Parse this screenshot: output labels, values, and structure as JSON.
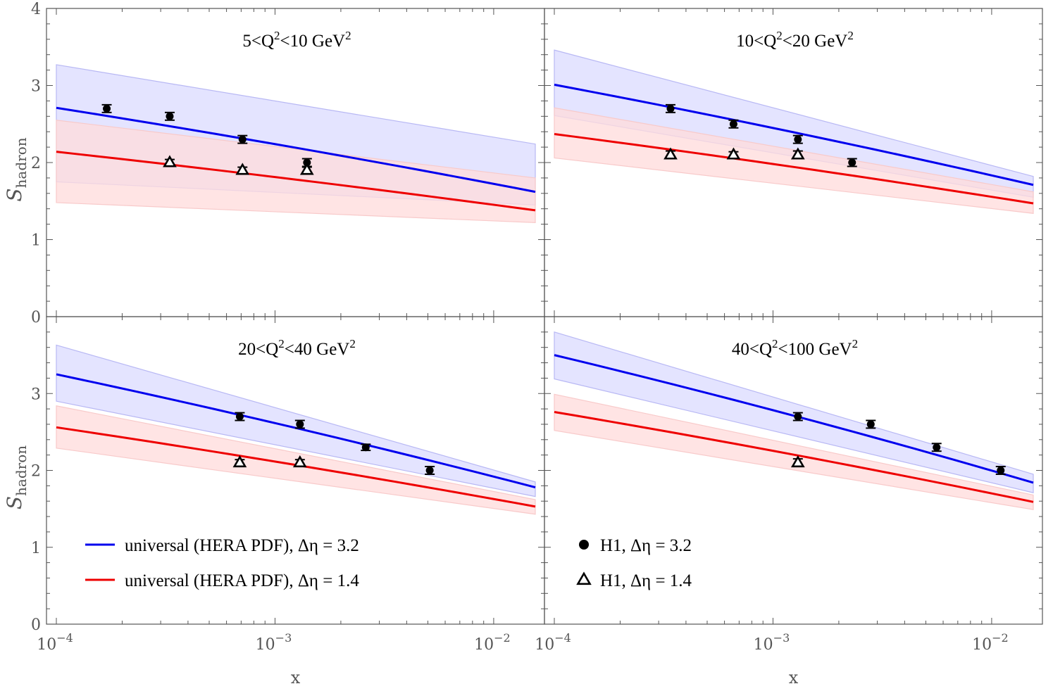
{
  "chart_data": {
    "type": "line",
    "x_scale": "log",
    "xlim": [
      0.0001,
      0.0155
    ],
    "ylim": [
      0,
      4
    ],
    "xlabel": "x",
    "ylabel": "S",
    "ylabel_sub": "hadron",
    "x_ticks": [
      {
        "value": 0.0001,
        "base": "10",
        "exp": "−4"
      },
      {
        "value": 0.001,
        "base": "10",
        "exp": "−3"
      },
      {
        "value": 0.01,
        "base": "10",
        "exp": "−2"
      }
    ],
    "y_ticks": [
      "0",
      "1",
      "2",
      "3",
      "4"
    ],
    "grid": false,
    "legend": {
      "placement": "bottom",
      "curves": [
        {
          "name": "universal (HERA PDF), Δη = 3.2",
          "color": "#0000ee"
        },
        {
          "name": "universal (HERA PDF), Δη = 1.4",
          "color": "#ee0000"
        }
      ],
      "markers": [
        {
          "name": "H1, Δη = 3.2",
          "marker": "filled-circle"
        },
        {
          "name": "H1, Δη = 1.4",
          "marker": "open-triangle"
        }
      ]
    },
    "colors": {
      "blue": "#0000ee",
      "red": "#ee0000",
      "blue_band": "#dcdcff",
      "red_band": "#ffdcdc"
    },
    "panels": [
      {
        "title": {
          "pre": "5<Q",
          "sup1": "2",
          "mid": "<10 GeV",
          "sup2": "2"
        },
        "curves": [
          {
            "color": "blue",
            "x": [
              0.0001,
              0.0155
            ],
            "y": [
              2.71,
              1.62
            ],
            "band": [
              [
                3.27,
                2.24
              ],
              [
                1.75,
                1.45
              ]
            ]
          },
          {
            "color": "red",
            "x": [
              0.0001,
              0.0155
            ],
            "y": [
              2.14,
              1.38
            ],
            "band": [
              [
                2.55,
                1.8
              ],
              [
                1.48,
                1.22
              ]
            ]
          }
        ],
        "points": [
          {
            "marker": "circle",
            "x": 0.00017,
            "y": 2.7,
            "err": 0.05
          },
          {
            "marker": "circle",
            "x": 0.00033,
            "y": 2.6,
            "err": 0.05
          },
          {
            "marker": "circle",
            "x": 0.00071,
            "y": 2.3,
            "err": 0.05
          },
          {
            "marker": "circle",
            "x": 0.0014,
            "y": 2.0,
            "err": 0.05
          },
          {
            "marker": "triangle",
            "x": 0.00033,
            "y": 2.0,
            "err": 0.04
          },
          {
            "marker": "triangle",
            "x": 0.00071,
            "y": 1.9,
            "err": 0.04
          },
          {
            "marker": "triangle",
            "x": 0.0014,
            "y": 1.9,
            "err": 0.04
          }
        ]
      },
      {
        "title": {
          "pre": "10<Q",
          "sup1": "2",
          "mid": "<20 GeV",
          "sup2": "2"
        },
        "curves": [
          {
            "color": "blue",
            "x": [
              0.0001,
              0.0155
            ],
            "y": [
              3.01,
              1.71
            ],
            "band": [
              [
                3.46,
                1.82
              ],
              [
                2.61,
                1.55
              ]
            ]
          },
          {
            "color": "red",
            "x": [
              0.0001,
              0.0155
            ],
            "y": [
              2.37,
              1.47
            ],
            "band": [
              [
                2.71,
                1.62
              ],
              [
                2.06,
                1.34
              ]
            ]
          }
        ],
        "points": [
          {
            "marker": "circle",
            "x": 0.00034,
            "y": 2.7,
            "err": 0.05
          },
          {
            "marker": "circle",
            "x": 0.00066,
            "y": 2.5,
            "err": 0.05
          },
          {
            "marker": "circle",
            "x": 0.0013,
            "y": 2.3,
            "err": 0.05
          },
          {
            "marker": "circle",
            "x": 0.0023,
            "y": 2.0,
            "err": 0.05
          },
          {
            "marker": "triangle",
            "x": 0.00034,
            "y": 2.1,
            "err": 0.05
          },
          {
            "marker": "triangle",
            "x": 0.00066,
            "y": 2.1,
            "err": 0.04
          },
          {
            "marker": "triangle",
            "x": 0.0013,
            "y": 2.1,
            "err": 0.05
          }
        ]
      },
      {
        "title": {
          "pre": "20<Q",
          "sup1": "2",
          "mid": "<40 GeV",
          "sup2": "2"
        },
        "curves": [
          {
            "color": "blue",
            "x": [
              0.0001,
              0.0155
            ],
            "y": [
              3.25,
              1.78
            ],
            "band": [
              [
                3.63,
                1.85
              ],
              [
                2.9,
                1.66
              ]
            ]
          },
          {
            "color": "red",
            "x": [
              0.0001,
              0.0155
            ],
            "y": [
              2.56,
              1.53
            ],
            "band": [
              [
                2.84,
                1.62
              ],
              [
                2.29,
                1.43
              ]
            ]
          }
        ],
        "points": [
          {
            "marker": "circle",
            "x": 0.00069,
            "y": 2.7,
            "err": 0.05
          },
          {
            "marker": "circle",
            "x": 0.0013,
            "y": 2.6,
            "err": 0.05
          },
          {
            "marker": "circle",
            "x": 0.0026,
            "y": 2.3,
            "err": 0.04
          },
          {
            "marker": "circle",
            "x": 0.0051,
            "y": 2.0,
            "err": 0.05
          },
          {
            "marker": "triangle",
            "x": 0.00069,
            "y": 2.1,
            "err": 0.04
          },
          {
            "marker": "triangle",
            "x": 0.0013,
            "y": 2.1,
            "err": 0.04
          }
        ]
      },
      {
        "title": {
          "pre": "40<Q",
          "sup1": "2",
          "mid": "<100 GeV",
          "sup2": "2"
        },
        "curves": [
          {
            "color": "blue",
            "x": [
              0.0001,
              0.0155
            ],
            "y": [
              3.5,
              1.84
            ],
            "band": [
              [
                3.8,
                1.95
              ],
              [
                3.19,
                1.71
              ]
            ]
          },
          {
            "color": "red",
            "x": [
              0.0001,
              0.0155
            ],
            "y": [
              2.76,
              1.59
            ],
            "band": [
              [
                2.99,
                1.68
              ],
              [
                2.52,
                1.49
              ]
            ]
          }
        ],
        "points": [
          {
            "marker": "circle",
            "x": 0.0013,
            "y": 2.7,
            "err": 0.05
          },
          {
            "marker": "circle",
            "x": 0.0028,
            "y": 2.6,
            "err": 0.05
          },
          {
            "marker": "circle",
            "x": 0.0056,
            "y": 2.3,
            "err": 0.05
          },
          {
            "marker": "circle",
            "x": 0.011,
            "y": 2.0,
            "err": 0.05
          },
          {
            "marker": "triangle",
            "x": 0.0013,
            "y": 2.1,
            "err": 0.05
          }
        ]
      }
    ]
  }
}
